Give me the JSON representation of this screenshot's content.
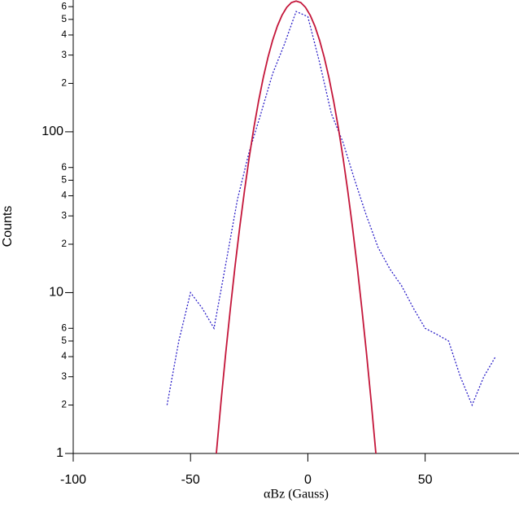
{
  "chart_data": {
    "type": "line",
    "y_label": "Counts",
    "x_label": "αBz (Gauss)",
    "xlim": [
      -100,
      90
    ],
    "xticks": [
      -100,
      -50,
      0,
      50
    ],
    "ylim": [
      1,
      660
    ],
    "log_y": true,
    "yticks": [
      1,
      2,
      3,
      4,
      5,
      6,
      10,
      {
        "value": 20,
        "label": "2"
      },
      {
        "value": 30,
        "label": "3"
      },
      {
        "value": 40,
        "label": "4"
      },
      {
        "value": 50,
        "label": "5"
      },
      {
        "value": 60,
        "label": "6"
      },
      100,
      {
        "value": 200,
        "label": "2"
      },
      {
        "value": 300,
        "label": "3"
      },
      {
        "value": 400,
        "label": "4"
      },
      {
        "value": 500,
        "label": "5"
      },
      {
        "value": 600,
        "label": "6"
      }
    ],
    "series": [
      {
        "color": "#2b1fc8",
        "dashed": true,
        "x": [
          -60,
          -55,
          -50,
          -45,
          -40,
          -35,
          -30,
          -25,
          -20,
          -15,
          -10,
          -5,
          0,
          5,
          10,
          15,
          20,
          25,
          30,
          35,
          40,
          45,
          50,
          55,
          60,
          65,
          70,
          75,
          80
        ],
        "values": [
          2,
          5,
          10,
          8,
          6,
          15,
          38,
          75,
          130,
          230,
          350,
          560,
          520,
          270,
          130,
          86,
          50,
          30,
          19,
          14,
          11,
          8,
          6,
          5.5,
          5,
          3,
          2,
          3,
          4
        ]
      },
      {
        "color": "#c4163a",
        "dashed": false,
        "x": [
          -39,
          -37,
          -35,
          -33,
          -31,
          -29,
          -27,
          -25,
          -23,
          -21,
          -19,
          -17,
          -15,
          -13,
          -11,
          -9,
          -7,
          -5,
          -3,
          -1,
          1,
          3,
          5,
          7,
          9,
          11,
          13,
          15,
          17,
          19,
          21,
          23,
          25,
          27,
          29
        ],
        "values": [
          1.0,
          2.1,
          4.2,
          8.0,
          14.7,
          25.7,
          43,
          69,
          106,
          155,
          217,
          290,
          371,
          454,
          531,
          594,
          636,
          650,
          636,
          594,
          531,
          454,
          371,
          290,
          217,
          155,
          106,
          69,
          43,
          25.7,
          14.7,
          8.0,
          4.2,
          2.1,
          1.0
        ]
      }
    ]
  }
}
